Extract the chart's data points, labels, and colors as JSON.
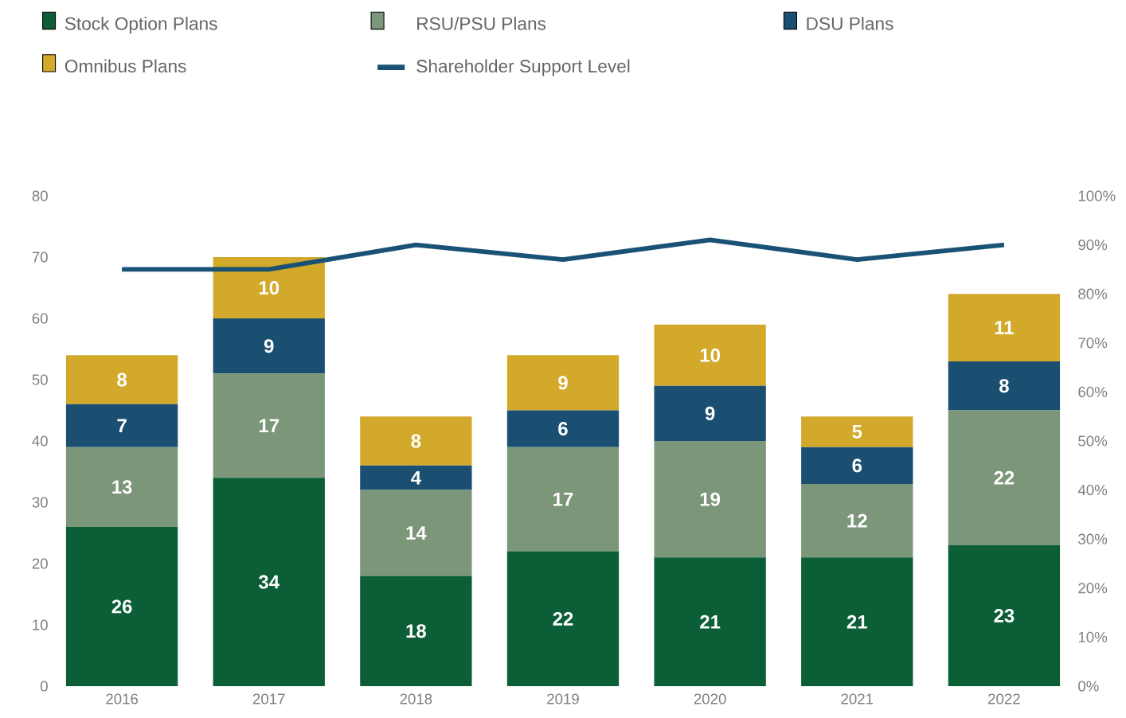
{
  "chart_data": {
    "type": "bar",
    "stacked": true,
    "legend": "top",
    "grid": false,
    "categories": [
      "2016",
      "2017",
      "2018",
      "2019",
      "2020",
      "2021",
      "2022"
    ],
    "series": [
      {
        "name": "Stock Option Plans",
        "color": "#0b5e35",
        "values": [
          26,
          34,
          18,
          22,
          21,
          21,
          23
        ],
        "value_labels": [
          "26",
          "34",
          "18",
          "22",
          "21",
          "21",
          "23"
        ]
      },
      {
        "name": "RSU/PSU Plans",
        "color": "#7b9679",
        "values": [
          13,
          17,
          14,
          17,
          19,
          12,
          22
        ],
        "value_labels": [
          "13",
          "17",
          "14",
          "17",
          "19",
          "12",
          "22"
        ]
      },
      {
        "name": "DSU Plans",
        "color": "#1b4f72",
        "values": [
          7,
          9,
          4,
          6,
          9,
          6,
          8
        ],
        "value_labels": [
          "7",
          "9",
          "4",
          "6",
          "9",
          "6",
          "8"
        ]
      },
      {
        "name": "Omnibus Plans",
        "color": "#d3a92c",
        "values": [
          8,
          10,
          8,
          9,
          10,
          5,
          11
        ],
        "value_labels": [
          "8",
          "10",
          "8",
          "9",
          "10",
          "5",
          "11"
        ]
      },
      {
        "name": "Shareholder Support Level",
        "type": "line",
        "axis": "y2",
        "color": "#1a5276",
        "values": [
          85,
          85,
          90,
          87,
          91,
          87,
          90
        ]
      }
    ],
    "ylim": [
      0,
      80
    ],
    "yticks": [
      0,
      10,
      20,
      30,
      40,
      50,
      60,
      70,
      80
    ],
    "y2lim": [
      0,
      100
    ],
    "y2ticks": [
      {
        "value": 0,
        "label": "0%"
      },
      {
        "value": 10,
        "label": "10%"
      },
      {
        "value": 20,
        "label": "20%"
      },
      {
        "value": 30,
        "label": "30%"
      },
      {
        "value": 40,
        "label": "40%"
      },
      {
        "value": 50,
        "label": "50%"
      },
      {
        "value": 60,
        "label": "60%"
      },
      {
        "value": 70,
        "label": "70%"
      },
      {
        "value": 80,
        "label": "80%"
      },
      {
        "value": 90,
        "label": "90%"
      },
      {
        "value": 100,
        "label": "100%"
      }
    ]
  }
}
